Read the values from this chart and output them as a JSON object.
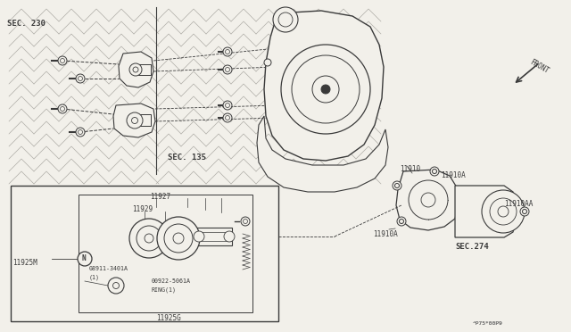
{
  "bg_color": "#f2f0ea",
  "line_color": "#3a3a3a",
  "part_numbers": {
    "SEC_230": "SEC. 230",
    "SEC_135": "SEC. 135",
    "SEC_274": "SEC.274",
    "11910": "11910",
    "11910A_top": "11910A",
    "11910A_bot": "11910A",
    "11910AA": "11910AA",
    "11925M": "11925M",
    "11925G": "11925G",
    "11927": "11927",
    "11929": "11929",
    "FRONT": "FRONT"
  },
  "watermark": "^P75*00P9",
  "fs": 5.5,
  "fm": 6.5,
  "fl": 7.5
}
